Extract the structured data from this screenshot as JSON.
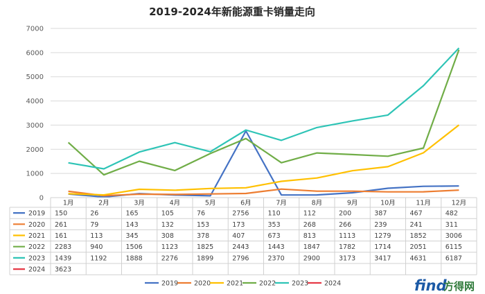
{
  "chart_data": {
    "type": "line",
    "title": "2019-2024年新能源重卡销量走向",
    "categories": [
      "1月",
      "2月",
      "3月",
      "4月",
      "5月",
      "6月",
      "7月",
      "8月",
      "9月",
      "10月",
      "11月",
      "12月"
    ],
    "y_ticks": [
      "0",
      "1000",
      "2000",
      "3000",
      "4000",
      "5000",
      "6000",
      "7000"
    ],
    "ylim": [
      0,
      7000
    ],
    "grid": true,
    "legend_position": "bottom",
    "series": [
      {
        "name": "2019",
        "color": "#4472c4",
        "values": [
          150,
          26,
          165,
          105,
          76,
          2756,
          110,
          112,
          200,
          387,
          467,
          482
        ]
      },
      {
        "name": "2020",
        "color": "#ed7d31",
        "values": [
          261,
          79,
          143,
          132,
          153,
          173,
          353,
          268,
          266,
          239,
          241,
          311
        ]
      },
      {
        "name": "2021",
        "color": "#ffc000",
        "values": [
          161,
          113,
          345,
          308,
          378,
          407,
          673,
          813,
          1113,
          1279,
          1852,
          3006
        ]
      },
      {
        "name": "2022",
        "color": "#70ad47",
        "values": [
          2283,
          940,
          1506,
          1123,
          1825,
          2443,
          1443,
          1847,
          1782,
          1714,
          2051,
          6115
        ]
      },
      {
        "name": "2023",
        "color": "#2ec4b6",
        "values": [
          1439,
          1192,
          1888,
          2276,
          1899,
          2796,
          2370,
          2900,
          3173,
          3417,
          4631,
          6187
        ]
      },
      {
        "name": "2024",
        "color": "#e63946",
        "values": [
          3623,
          null,
          null,
          null,
          null,
          null,
          null,
          null,
          null,
          null,
          null,
          null
        ]
      }
    ]
  },
  "watermark": {
    "text1": "find",
    "text2": "方得网"
  }
}
